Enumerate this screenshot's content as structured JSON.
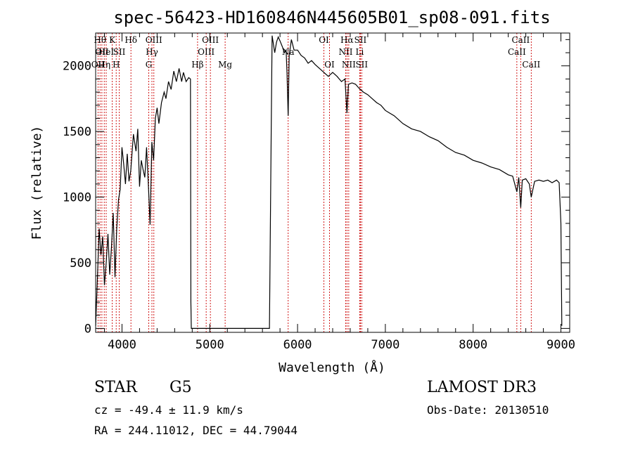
{
  "chart_data": {
    "type": "line",
    "title": "spec-56423-HD160846N445605B01_sp08-091.fits",
    "xlabel": "Wavelength (Å)",
    "ylabel": "Flux (relative)",
    "xlim": [
      3700,
      9100
    ],
    "ylim": [
      -30,
      2250
    ],
    "xticks": [
      4000,
      5000,
      6000,
      7000,
      8000,
      9000
    ],
    "yticks": [
      0,
      500,
      1000,
      1500,
      2000
    ],
    "grid": false,
    "series": [
      {
        "values": [
          [
            3700,
            20
          ],
          [
            3720,
            380
          ],
          [
            3740,
            760
          ],
          [
            3760,
            560
          ],
          [
            3780,
            700
          ],
          [
            3800,
            330
          ],
          [
            3820,
            500
          ],
          [
            3840,
            720
          ],
          [
            3860,
            410
          ],
          [
            3880,
            620
          ],
          [
            3900,
            880
          ],
          [
            3920,
            390
          ],
          [
            3940,
            760
          ],
          [
            3960,
            980
          ],
          [
            3980,
            1060
          ],
          [
            4000,
            1380
          ],
          [
            4020,
            1250
          ],
          [
            4040,
            1100
          ],
          [
            4060,
            1330
          ],
          [
            4080,
            1120
          ],
          [
            4100,
            1200
          ],
          [
            4130,
            1480
          ],
          [
            4160,
            1350
          ],
          [
            4180,
            1520
          ],
          [
            4200,
            1080
          ],
          [
            4220,
            1280
          ],
          [
            4240,
            1210
          ],
          [
            4260,
            1150
          ],
          [
            4280,
            1380
          ],
          [
            4300,
            1100
          ],
          [
            4320,
            790
          ],
          [
            4340,
            1420
          ],
          [
            4360,
            1280
          ],
          [
            4380,
            1600
          ],
          [
            4400,
            1680
          ],
          [
            4420,
            1560
          ],
          [
            4450,
            1720
          ],
          [
            4480,
            1800
          ],
          [
            4500,
            1750
          ],
          [
            4530,
            1880
          ],
          [
            4560,
            1820
          ],
          [
            4590,
            1960
          ],
          [
            4620,
            1880
          ],
          [
            4650,
            1980
          ],
          [
            4680,
            1880
          ],
          [
            4700,
            1950
          ],
          [
            4730,
            1880
          ],
          [
            4760,
            1910
          ],
          [
            4780,
            1900
          ],
          [
            4785,
            200
          ],
          [
            4790,
            0
          ],
          [
            5680,
            0
          ],
          [
            5700,
            1500
          ],
          [
            5710,
            2230
          ],
          [
            5740,
            2100
          ],
          [
            5760,
            2180
          ],
          [
            5780,
            2220
          ],
          [
            5800,
            2190
          ],
          [
            5830,
            2140
          ],
          [
            5850,
            2100
          ],
          [
            5870,
            2120
          ],
          [
            5880,
            1940
          ],
          [
            5893,
            1620
          ],
          [
            5905,
            2080
          ],
          [
            5930,
            2200
          ],
          [
            5960,
            2120
          ],
          [
            6000,
            2120
          ],
          [
            6040,
            2080
          ],
          [
            6080,
            2060
          ],
          [
            6120,
            2020
          ],
          [
            6160,
            2040
          ],
          [
            6200,
            2010
          ],
          [
            6250,
            1980
          ],
          [
            6300,
            1950
          ],
          [
            6350,
            1920
          ],
          [
            6400,
            1950
          ],
          [
            6450,
            1920
          ],
          [
            6500,
            1880
          ],
          [
            6540,
            1900
          ],
          [
            6563,
            1640
          ],
          [
            6580,
            1860
          ],
          [
            6620,
            1870
          ],
          [
            6660,
            1860
          ],
          [
            6700,
            1830
          ],
          [
            6750,
            1800
          ],
          [
            6800,
            1780
          ],
          [
            6850,
            1750
          ],
          [
            6900,
            1720
          ],
          [
            6950,
            1700
          ],
          [
            7000,
            1660
          ],
          [
            7050,
            1640
          ],
          [
            7100,
            1620
          ],
          [
            7200,
            1560
          ],
          [
            7300,
            1520
          ],
          [
            7400,
            1500
          ],
          [
            7500,
            1460
          ],
          [
            7600,
            1430
          ],
          [
            7700,
            1380
          ],
          [
            7800,
            1340
          ],
          [
            7900,
            1320
          ],
          [
            8000,
            1280
          ],
          [
            8100,
            1260
          ],
          [
            8200,
            1230
          ],
          [
            8300,
            1210
          ],
          [
            8400,
            1170
          ],
          [
            8450,
            1160
          ],
          [
            8498,
            1040
          ],
          [
            8520,
            1150
          ],
          [
            8542,
            920
          ],
          [
            8560,
            1130
          ],
          [
            8600,
            1140
          ],
          [
            8640,
            1100
          ],
          [
            8662,
            1000
          ],
          [
            8700,
            1120
          ],
          [
            8750,
            1130
          ],
          [
            8800,
            1120
          ],
          [
            8850,
            1130
          ],
          [
            8900,
            1110
          ],
          [
            8950,
            1130
          ],
          [
            8980,
            1110
          ],
          [
            9000,
            800
          ],
          [
            9010,
            20
          ]
        ]
      }
    ],
    "line_markers": [
      {
        "wavelength": 3727,
        "label": "OII",
        "row": 3
      },
      {
        "wavelength": 3750,
        "label": "Hθ",
        "row": 1
      },
      {
        "wavelength": 3771,
        "label": "OII",
        "row": 2
      },
      {
        "wavelength": 3798,
        "label": "Hη",
        "row": 3
      },
      {
        "wavelength": 3820,
        "label": "HeI",
        "row": 2
      },
      {
        "wavelength": 3889,
        "label": "K",
        "row": 1
      },
      {
        "wavelength": 3934,
        "label": "H",
        "row": 3
      },
      {
        "wavelength": 3969,
        "label": "SII",
        "row": 2
      },
      {
        "wavelength": 4102,
        "label": "Hδ",
        "row": 1
      },
      {
        "wavelength": 4305,
        "label": "G",
        "row": 3
      },
      {
        "wavelength": 4341,
        "label": "Hγ",
        "row": 2
      },
      {
        "wavelength": 4363,
        "label": "OIII",
        "row": 1
      },
      {
        "wavelength": 4861,
        "label": "Hβ",
        "row": 3
      },
      {
        "wavelength": 4959,
        "label": "OIII",
        "row": 2
      },
      {
        "wavelength": 5007,
        "label": "OIII",
        "row": 1
      },
      {
        "wavelength": 5175,
        "label": "Mg",
        "row": 3
      },
      {
        "wavelength": 5893,
        "label": "Na",
        "row": 2
      },
      {
        "wavelength": 6300,
        "label": "OI",
        "row": 1
      },
      {
        "wavelength": 6364,
        "label": "OI",
        "row": 3
      },
      {
        "wavelength": 6548,
        "label": "NII",
        "row": 2
      },
      {
        "wavelength": 6563,
        "label": "Hα",
        "row": 1
      },
      {
        "wavelength": 6583,
        "label": "NII",
        "row": 3
      },
      {
        "wavelength": 6708,
        "label": "Li",
        "row": 2
      },
      {
        "wavelength": 6716,
        "label": "SII",
        "row": 1
      },
      {
        "wavelength": 6731,
        "label": "SII",
        "row": 3
      },
      {
        "wavelength": 8498,
        "label": "CaII",
        "row": 2
      },
      {
        "wavelength": 8542,
        "label": "CaII",
        "row": 1
      },
      {
        "wavelength": 8662,
        "label": "CaII",
        "row": 3
      }
    ]
  },
  "info": {
    "object_class": "STAR",
    "subclass": "G5",
    "survey": "LAMOST DR3",
    "redshift": "cz = -49.4 ± 11.9 km/s",
    "obs_date": "Obs-Date: 20130510",
    "coords": "RA = 244.11012, DEC =  44.79044"
  },
  "colors": {
    "line": "#000000",
    "marker": "#cc0000",
    "axis": "#000000"
  }
}
